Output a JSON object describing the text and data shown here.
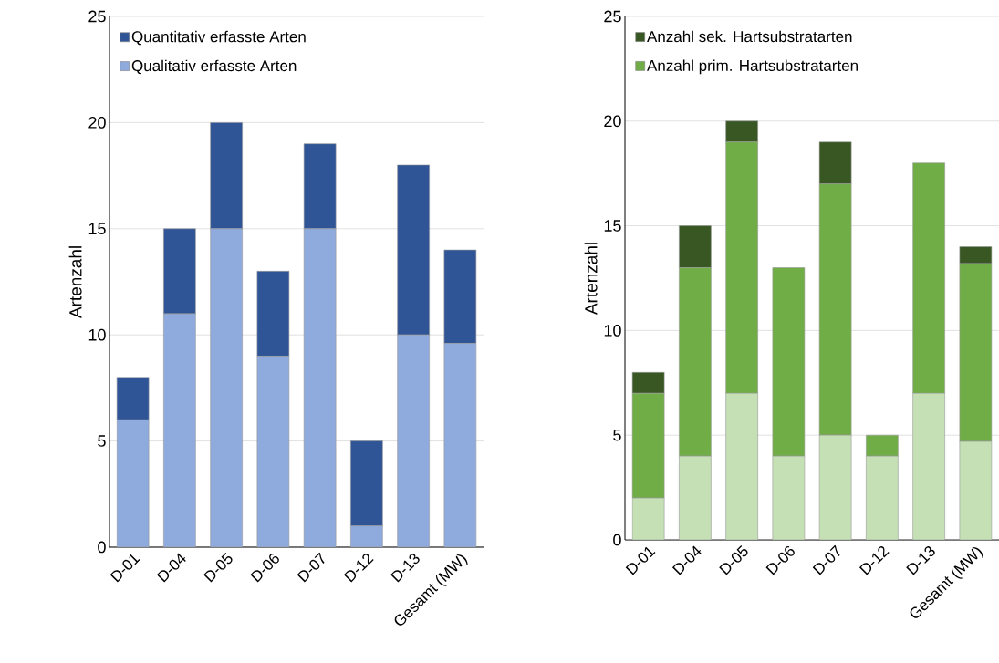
{
  "chart_data": [
    {
      "type": "bar",
      "stacked": true,
      "ylabel": "Artenzahl",
      "categories": [
        "D-01",
        "D-04",
        "D-05",
        "D-06",
        "D-07",
        "D-12",
        "D-13",
        "Gesamt (MW)"
      ],
      "ylim": [
        0,
        25
      ],
      "yticks": [
        0,
        5,
        10,
        15,
        20,
        25
      ],
      "grid": "y",
      "legend": "top left",
      "series": [
        {
          "name": "Qualitativ erfasste Arten",
          "color": "#8faadc",
          "values": [
            6,
            11,
            15,
            9,
            15,
            1,
            10,
            9.6
          ]
        },
        {
          "name": "Quantitativ erfasste Arten",
          "color": "#2f5597",
          "values": [
            2,
            4,
            5,
            4,
            4,
            4,
            8,
            4.4
          ]
        }
      ]
    },
    {
      "type": "bar",
      "stacked": true,
      "ylabel": "Artenzahl",
      "categories": [
        "D-01",
        "D-04",
        "D-05",
        "D-06",
        "D-07",
        "D-12",
        "D-13",
        "Gesamt (MW)"
      ],
      "ylim": [
        0,
        25
      ],
      "yticks": [
        0,
        5,
        10,
        15,
        20,
        25
      ],
      "grid": "y",
      "legend": "top left",
      "series": [
        {
          "color": "#c5e0b4",
          "values": [
            2,
            4,
            7,
            4,
            5,
            4,
            7,
            4.7
          ]
        },
        {
          "name": "Anzahl prim. Hartsubstratarten",
          "color": "#70ad47",
          "values": [
            5,
            9,
            12,
            9,
            12,
            1,
            11,
            8.5
          ]
        },
        {
          "name": "Anzahl sek. Hartsubstratarten",
          "color": "#385723",
          "values": [
            1,
            2,
            1,
            null,
            2,
            null,
            null,
            0.8
          ]
        }
      ]
    }
  ]
}
